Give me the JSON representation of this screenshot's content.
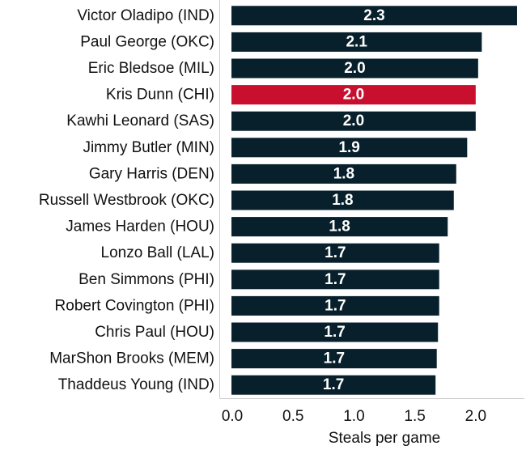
{
  "chart_data": {
    "type": "bar",
    "orientation": "horizontal",
    "categories": [
      "Victor Oladipo (IND)",
      "Paul George (OKC)",
      "Eric Bledsoe (MIL)",
      "Kris Dunn (CHI)",
      "Kawhi Leonard (SAS)",
      "Jimmy Butler (MIN)",
      "Gary Harris (DEN)",
      "Russell Westbrook (OKC)",
      "James Harden (HOU)",
      "Lonzo Ball (LAL)",
      "Ben Simmons (PHI)",
      "Robert Covington (PHI)",
      "Chris Paul (HOU)",
      "MarShon Brooks (MEM)",
      "Thaddeus Young (IND)"
    ],
    "values": [
      2.34,
      2.05,
      2.02,
      2.0,
      2.0,
      1.93,
      1.84,
      1.82,
      1.77,
      1.7,
      1.7,
      1.7,
      1.69,
      1.68,
      1.67
    ],
    "value_labels": [
      "2.3",
      "2.1",
      "2.0",
      "2.0",
      "2.0",
      "1.9",
      "1.8",
      "1.8",
      "1.8",
      "1.7",
      "1.7",
      "1.7",
      "1.7",
      "1.7",
      "1.7"
    ],
    "highlight_index": 3,
    "xlabel": "Steals per game",
    "ylabel": "",
    "xlim": [
      -0.1,
      2.4
    ],
    "xticks": [
      0.0,
      0.5,
      1.0,
      1.5,
      2.0
    ],
    "xtick_labels": [
      "0.0",
      "0.5",
      "1.0",
      "1.5",
      "2.0"
    ],
    "grid": false,
    "colors": {
      "bar": "#07202b",
      "highlight": "#c8102e",
      "axis": "#cccccc"
    }
  }
}
